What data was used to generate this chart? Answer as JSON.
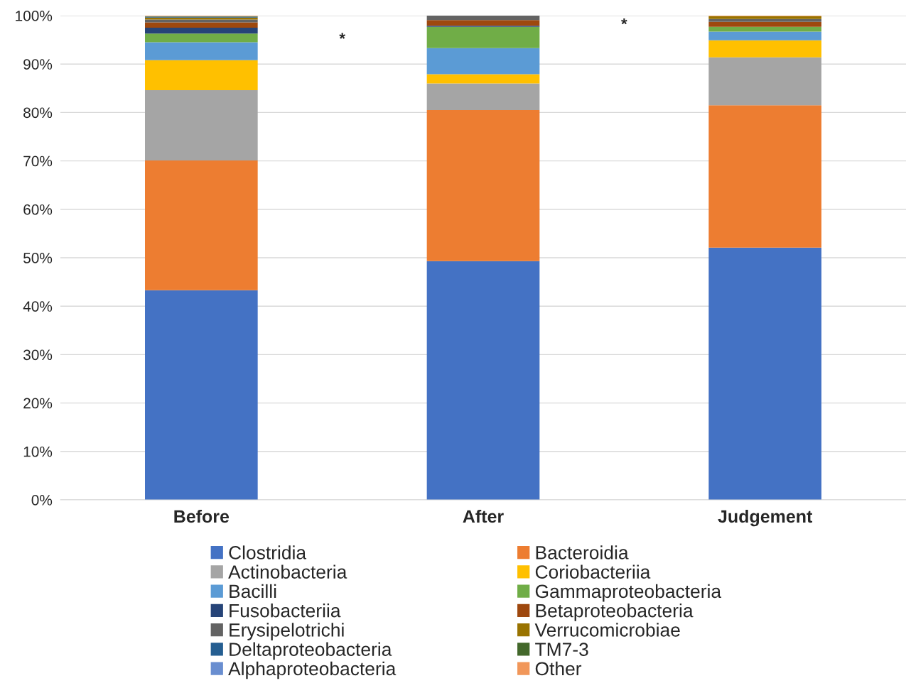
{
  "chart_data": {
    "type": "bar",
    "stacked": true,
    "categories": [
      "Before",
      "After",
      "Judgement"
    ],
    "series": [
      {
        "name": "Clostridia",
        "color": "#4472c4",
        "values": [
          43.3,
          49.3,
          52.1
        ]
      },
      {
        "name": "Bacteroidia",
        "color": "#ed7d31",
        "values": [
          26.8,
          31.2,
          29.4
        ]
      },
      {
        "name": "Actinobacteria",
        "color": "#a5a5a5",
        "values": [
          14.5,
          5.5,
          9.9
        ]
      },
      {
        "name": "Coriobacteriia",
        "color": "#ffc000",
        "values": [
          6.2,
          1.9,
          3.5
        ]
      },
      {
        "name": "Bacilli",
        "color": "#5b9bd5",
        "values": [
          3.7,
          5.4,
          1.8
        ]
      },
      {
        "name": "Gammaproteobacteria",
        "color": "#70ad47",
        "values": [
          1.8,
          4.4,
          1.0
        ]
      },
      {
        "name": "Fusobacteriia",
        "color": "#264478",
        "values": [
          1.2,
          0.2,
          0.0
        ]
      },
      {
        "name": "Betaproteobacteria",
        "color": "#9e480e",
        "values": [
          1.1,
          1.2,
          1.0
        ]
      },
      {
        "name": "Erysipelotrichi",
        "color": "#636363",
        "values": [
          0.6,
          0.9,
          0.6
        ]
      },
      {
        "name": "Verrucomicrobiae",
        "color": "#997300",
        "values": [
          0.4,
          0.0,
          0.6
        ]
      },
      {
        "name": "Deltaproteobacteria",
        "color": "#255e91",
        "values": [
          0.1,
          0.0,
          0.0
        ]
      },
      {
        "name": "TM7-3",
        "color": "#43682b",
        "values": [
          0.1,
          0.0,
          0.0
        ]
      },
      {
        "name": "Alphaproteobacteria",
        "color": "#698ed0",
        "values": [
          0.1,
          0.0,
          0.0
        ]
      },
      {
        "name": "Other",
        "color": "#f1975a",
        "values": [
          0.1,
          0.0,
          0.1
        ]
      }
    ],
    "ylim": [
      0,
      100
    ],
    "yticks": [
      {
        "value": 0,
        "label": "0%"
      },
      {
        "value": 10,
        "label": "10%"
      },
      {
        "value": 20,
        "label": "20%"
      },
      {
        "value": 30,
        "label": "30%"
      },
      {
        "value": 40,
        "label": "40%"
      },
      {
        "value": 50,
        "label": "50%"
      },
      {
        "value": 60,
        "label": "60%"
      },
      {
        "value": 70,
        "label": "70%"
      },
      {
        "value": 80,
        "label": "80%"
      },
      {
        "value": 90,
        "label": "90%"
      },
      {
        "value": 100,
        "label": "100%"
      }
    ],
    "grid": "y",
    "legend": "bottom",
    "annotations": [
      "*",
      "*"
    ]
  }
}
